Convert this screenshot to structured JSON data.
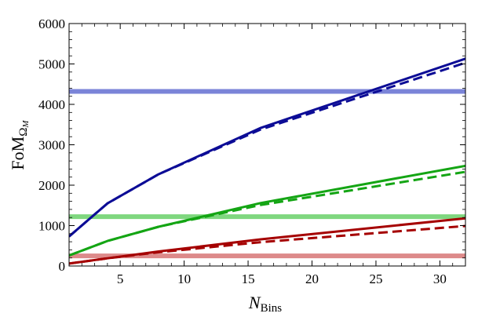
{
  "chart_data": {
    "type": "line",
    "xlabel": "",
    "ylabel": "",
    "xlabel_base": "N",
    "xlabel_sub": "Bins",
    "ylabel_base": "FoM",
    "ylabel_sub": "Ω",
    "ylabel_subsub": "M",
    "xlim": [
      1,
      32
    ],
    "ylim": [
      0,
      6000
    ],
    "x_ticks": [
      5,
      10,
      15,
      20,
      25,
      30
    ],
    "y_ticks": [
      0,
      1000,
      2000,
      3000,
      4000,
      5000,
      6000
    ],
    "grid": false,
    "colors": {
      "blue": "#0c0c96",
      "green": "#14a514",
      "red": "#a50000",
      "blue_ref": "#7b84d8",
      "green_ref": "#7fd77f",
      "red_ref": "#dd8a8a"
    },
    "series": [
      {
        "id": "blue-solid",
        "color": "blue",
        "style": "solid",
        "x": [
          1,
          4,
          8,
          16,
          32
        ],
        "y": [
          730,
          1550,
          2270,
          3420,
          5130
        ]
      },
      {
        "id": "blue-dashed",
        "color": "blue",
        "style": "dashed",
        "x": [
          1,
          4,
          8,
          16,
          32
        ],
        "y": [
          730,
          1550,
          2270,
          3380,
          5030
        ]
      },
      {
        "id": "green-solid",
        "color": "green",
        "style": "solid",
        "x": [
          1,
          4,
          8,
          16,
          32
        ],
        "y": [
          260,
          620,
          970,
          1560,
          2480
        ]
      },
      {
        "id": "green-dashed",
        "color": "green",
        "style": "dashed",
        "x": [
          1,
          4,
          8,
          16,
          32
        ],
        "y": [
          260,
          620,
          970,
          1510,
          2330
        ]
      },
      {
        "id": "red-solid",
        "color": "red",
        "style": "solid",
        "x": [
          1,
          4,
          8,
          16,
          32
        ],
        "y": [
          60,
          190,
          360,
          660,
          1180
        ]
      },
      {
        "id": "red-dashed",
        "color": "red",
        "style": "dashed",
        "x": [
          1,
          4,
          8,
          16,
          32
        ],
        "y": [
          60,
          190,
          340,
          590,
          990
        ]
      }
    ],
    "reference_lines": [
      {
        "id": "blue-reference",
        "color": "blue_ref",
        "y": 4320
      },
      {
        "id": "green-reference",
        "color": "green_ref",
        "y": 1220
      },
      {
        "id": "red-reference",
        "color": "red_ref",
        "y": 250
      }
    ]
  }
}
